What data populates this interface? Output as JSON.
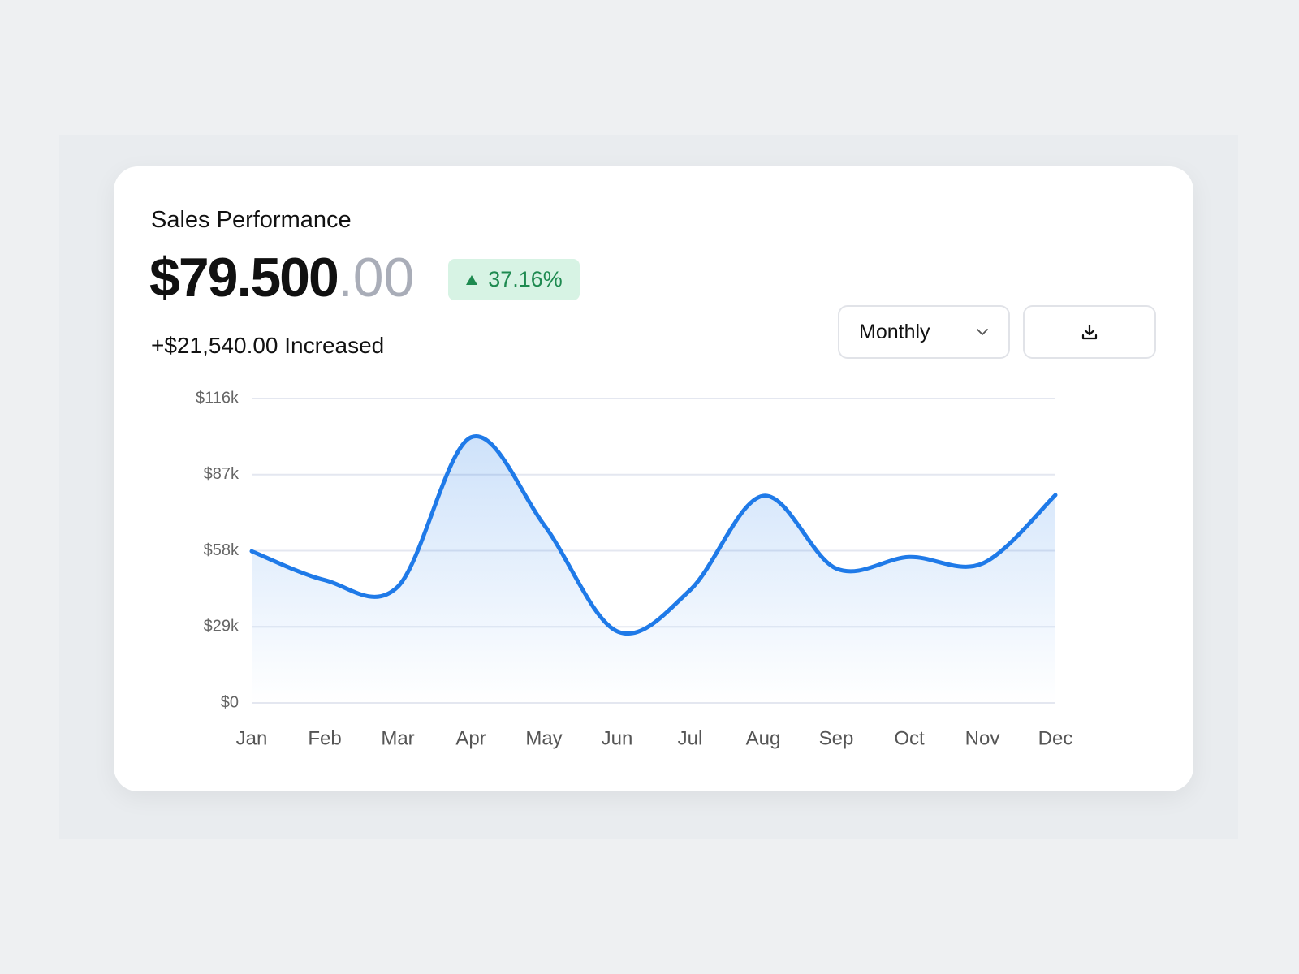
{
  "header": {
    "title": "Sales Performance",
    "amount": "$79.500",
    "cents": ".00",
    "change": "37.16%",
    "increase": "+$21,540.00 Increased"
  },
  "controls": {
    "period": "Monthly"
  },
  "chart_data": {
    "type": "area",
    "categories": [
      "Jan",
      "Feb",
      "Mar",
      "Apr",
      "May",
      "Jun",
      "Jul",
      "Aug",
      "Sep",
      "Oct",
      "Nov",
      "Dec"
    ],
    "values": [
      57800,
      46800,
      44300,
      101200,
      67900,
      27300,
      43000,
      78900,
      51200,
      55600,
      53100,
      79200
    ],
    "color": "#1f7ae8",
    "ylim": [
      0,
      116000
    ],
    "yticks": [
      {
        "value": 0,
        "label": "$0"
      },
      {
        "value": 29000,
        "label": "$29k"
      },
      {
        "value": 58000,
        "label": "$58k"
      },
      {
        "value": 87000,
        "label": "$87k"
      },
      {
        "value": 116000,
        "label": "$116k"
      }
    ],
    "grid": true
  }
}
